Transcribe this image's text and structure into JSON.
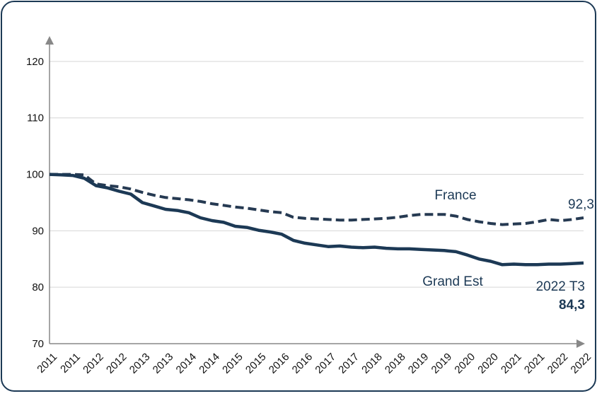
{
  "chart_data": {
    "type": "line",
    "categories": [
      "2011",
      null,
      "2011",
      null,
      "2012",
      null,
      "2012",
      null,
      "2013",
      null,
      "2013",
      null,
      "2014",
      null,
      "2014",
      null,
      "2015",
      null,
      "2015",
      null,
      "2016",
      null,
      "2016",
      null,
      "2017",
      null,
      "2017",
      null,
      "2018",
      null,
      "2018",
      null,
      "2019",
      null,
      "2019",
      null,
      "2020",
      null,
      "2020",
      null,
      "2021",
      null,
      "2021",
      null,
      "2022",
      null,
      "2022"
    ],
    "series": [
      {
        "name": "France",
        "color": "#263a52",
        "dash": true,
        "values": [
          100,
          100,
          100,
          99.9,
          98.3,
          98,
          97.8,
          97.4,
          96.8,
          96.3,
          95.9,
          95.7,
          95.5,
          95.2,
          94.8,
          94.5,
          94.2,
          94,
          93.7,
          93.4,
          93.2,
          92.4,
          92.2,
          92.1,
          92,
          91.9,
          91.9,
          92,
          92.1,
          92.2,
          92.4,
          92.7,
          92.9,
          92.9,
          92.9,
          92.6,
          92,
          91.6,
          91.3,
          91.1,
          91.2,
          91.3,
          91.6,
          92,
          91.8,
          92,
          92.3
        ]
      },
      {
        "name": "Grand Est",
        "color": "#1c3955",
        "dash": false,
        "values": [
          100,
          99.9,
          99.8,
          99.3,
          98,
          97.6,
          97,
          96.5,
          95,
          94.4,
          93.8,
          93.6,
          93.2,
          92.3,
          91.8,
          91.5,
          90.8,
          90.6,
          90.1,
          89.8,
          89.4,
          88.3,
          87.8,
          87.5,
          87.2,
          87.3,
          87.1,
          87,
          87.1,
          86.9,
          86.8,
          86.8,
          86.7,
          86.6,
          86.5,
          86.3,
          85.7,
          85,
          84.6,
          84,
          84.1,
          84,
          84,
          84.1,
          84.1,
          84.2,
          84.3
        ]
      }
    ],
    "annotations": [
      "92,3",
      "2022 T3",
      "84,3"
    ],
    "ylim": [
      70,
      124.5
    ],
    "yticks": [
      70,
      80,
      90,
      100,
      110,
      120
    ],
    "grid": true
  }
}
